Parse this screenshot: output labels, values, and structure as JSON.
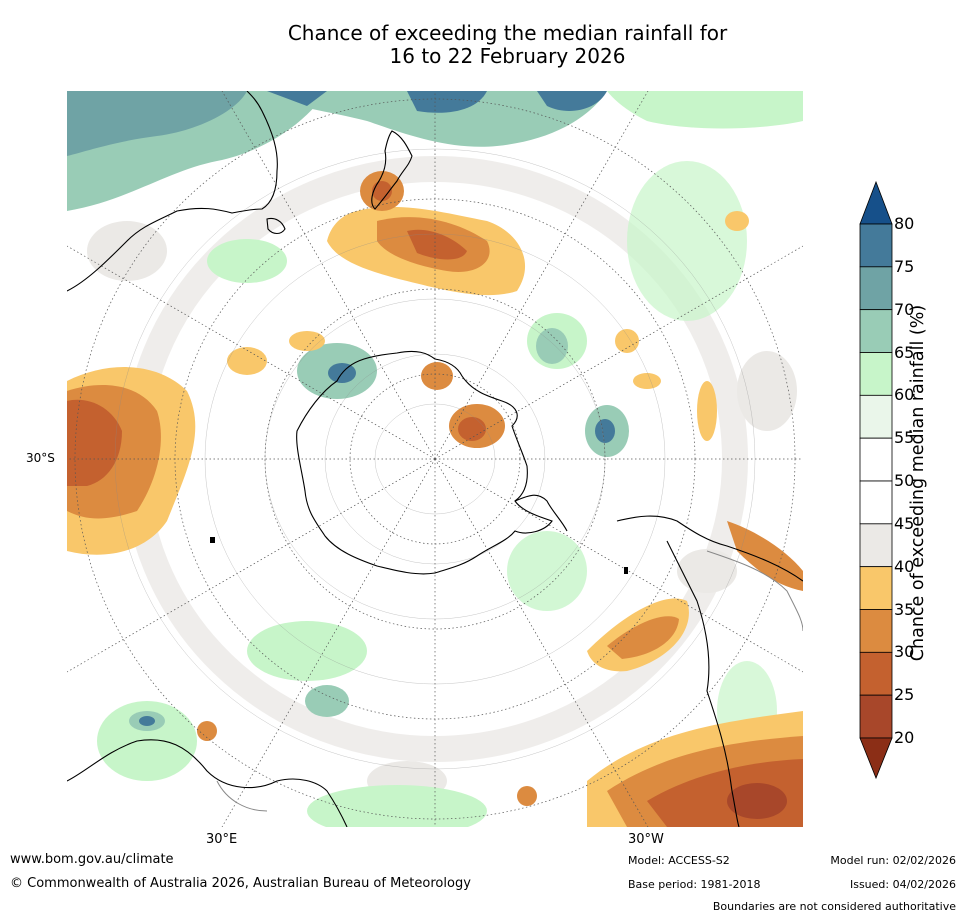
{
  "title": {
    "line1": "Chance of exceeding the median rainfall for",
    "line2": "16 to 22 February 2026"
  },
  "map": {
    "lat_label": "30°S",
    "lon_labels": [
      "30°E",
      "30°W"
    ]
  },
  "colorbar": {
    "title": "Chance of exceeding median rainfall (%)",
    "ticks": [
      "20",
      "25",
      "30",
      "35",
      "40",
      "45",
      "50",
      "55",
      "60",
      "65",
      "70",
      "75",
      "80"
    ],
    "colors": [
      "#8b2e16",
      "#a8472a",
      "#c4612f",
      "#dc8b40",
      "#f9c76a",
      "#ebe9e6",
      "#ffffff",
      "#ffffff",
      "#eaf6ea",
      "#c7f5c9",
      "#99ccb6",
      "#6fa3a5",
      "#447a9a",
      "#16508a"
    ]
  },
  "footer": {
    "url": "www.bom.gov.au/climate",
    "copyright": "© Commonwealth of Australia 2026, Australian Bureau of Meteorology",
    "model": "Model: ACCESS-S2",
    "base_period": "Base period: 1981-2018",
    "model_run": "Model run: 02/02/2026",
    "issued": "Issued: 04/02/2026",
    "disclaimer": "Boundaries are not considered authoritative"
  }
}
